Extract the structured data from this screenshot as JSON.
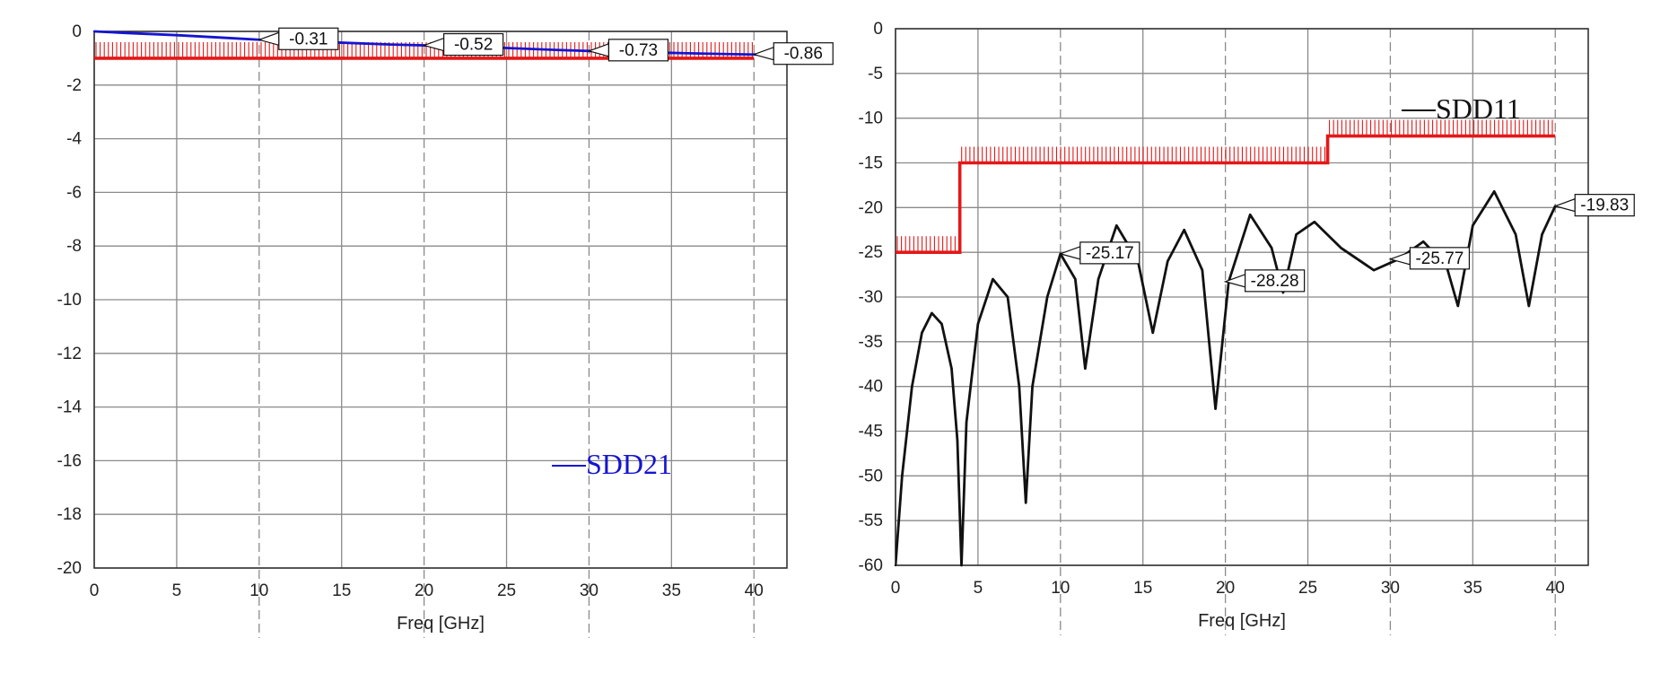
{
  "chart_data": [
    {
      "type": "line",
      "xlabel": "Freq [GHz]",
      "ylabel": "",
      "xlim": [
        0,
        42
      ],
      "ylim": [
        -20,
        0
      ],
      "xticks": [
        0,
        5,
        10,
        15,
        20,
        25,
        30,
        35,
        40
      ],
      "yticks": [
        0,
        -2,
        -4,
        -6,
        -8,
        -10,
        -12,
        -14,
        -16,
        -18,
        -20
      ],
      "grid": true,
      "legend_position": "bottom-right",
      "colors": {
        "series": "#1414d2",
        "limit": "#e41818"
      },
      "series": [
        {
          "name": "SDD21",
          "x": [
            0,
            2,
            5,
            8,
            10,
            12,
            15,
            18,
            20,
            22,
            25,
            28,
            30,
            32,
            35,
            38,
            40,
            42
          ],
          "y": [
            0.0,
            -0.06,
            -0.14,
            -0.24,
            -0.31,
            -0.35,
            -0.42,
            -0.49,
            -0.52,
            -0.56,
            -0.62,
            -0.69,
            -0.73,
            -0.75,
            -0.8,
            -0.84,
            -0.86,
            -0.88
          ]
        }
      ],
      "limit_line": {
        "x": [
          0,
          40
        ],
        "y": [
          -1,
          -1
        ]
      },
      "markers": [
        {
          "x": 10,
          "y": -0.31,
          "label": "-0.31"
        },
        {
          "x": 20,
          "y": -0.52,
          "label": "-0.52"
        },
        {
          "x": 30,
          "y": -0.73,
          "label": "-0.73"
        },
        {
          "x": 40,
          "y": -0.86,
          "label": "-0.86"
        }
      ]
    },
    {
      "type": "line",
      "xlabel": "Freq [GHz]",
      "ylabel": "",
      "xlim": [
        0,
        42
      ],
      "ylim": [
        -60,
        0
      ],
      "xticks": [
        0,
        5,
        10,
        15,
        20,
        25,
        30,
        35,
        40
      ],
      "yticks": [
        0,
        -5,
        -10,
        -15,
        -20,
        -25,
        -30,
        -35,
        -40,
        -45,
        -50,
        -55,
        -60
      ],
      "grid": true,
      "legend_position": "top-right",
      "colors": {
        "series": "#111111",
        "limit": "#e41818"
      },
      "series": [
        {
          "name": "SDD11",
          "x": [
            0,
            0.4,
            1.0,
            1.6,
            2.2,
            2.8,
            3.4,
            3.75,
            4.0,
            4.3,
            5.0,
            5.9,
            6.8,
            7.5,
            7.9,
            8.3,
            9.2,
            10.0,
            10.9,
            11.5,
            12.3,
            13.4,
            14.7,
            15.6,
            16.5,
            17.5,
            18.6,
            19.4,
            20.2,
            21.5,
            22.8,
            23.5,
            24.3,
            25.4,
            27.0,
            29.0,
            30.5,
            32.0,
            33.4,
            34.1,
            35.0,
            36.3,
            37.6,
            38.4,
            39.2,
            40.0
          ],
          "y": [
            -60,
            -50,
            -40,
            -34,
            -31.8,
            -33,
            -38,
            -46,
            -60,
            -44,
            -33,
            -28,
            -30,
            -40,
            -53,
            -40,
            -30,
            -25.17,
            -28,
            -38,
            -28,
            -22,
            -26,
            -34,
            -26,
            -22.5,
            -27,
            -42.5,
            -28.28,
            -20.8,
            -24.5,
            -29.5,
            -23,
            -21.6,
            -24.5,
            -27,
            -25.77,
            -23.8,
            -26.5,
            -31,
            -22,
            -18.2,
            -23,
            -31,
            -23,
            -19.83
          ]
        }
      ],
      "limit_line": {
        "x": [
          0,
          3.9,
          3.9,
          26.2,
          26.2,
          40
        ],
        "y": [
          -25,
          -25,
          -15,
          -15,
          -12,
          -12
        ]
      },
      "markers": [
        {
          "x": 10,
          "y": -25.17,
          "label": "-25.17"
        },
        {
          "x": 20,
          "y": -28.28,
          "label": "-28.28"
        },
        {
          "x": 30,
          "y": -25.77,
          "label": "-25.77"
        },
        {
          "x": 40,
          "y": -19.83,
          "label": "-19.83"
        }
      ]
    }
  ]
}
